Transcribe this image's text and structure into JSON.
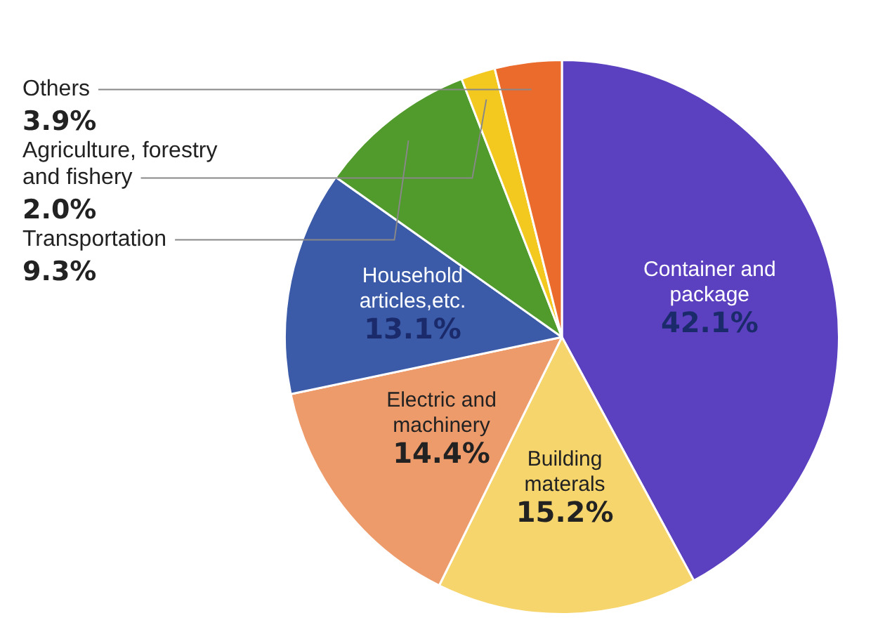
{
  "chart_data": {
    "type": "pie",
    "categories": [
      "Container and package",
      "Building materals",
      "Electric and machinery",
      "Household articles,etc.",
      "Transportation",
      "Agriculture, forestry and fishery",
      "Others"
    ],
    "values": [
      42.1,
      15.2,
      14.4,
      13.1,
      9.3,
      2.0,
      3.9
    ],
    "colors": [
      "#5b40c0",
      "#f6d56c",
      "#ee9b6b",
      "#3b5ba8",
      "#509b2b",
      "#f3c91f",
      "#ea6b2c"
    ],
    "value_labels": [
      "42.1%",
      "15.2%",
      "14.4%",
      "13.1%",
      "9.3%",
      "2.0%",
      "3.9%"
    ],
    "legend": false
  }
}
